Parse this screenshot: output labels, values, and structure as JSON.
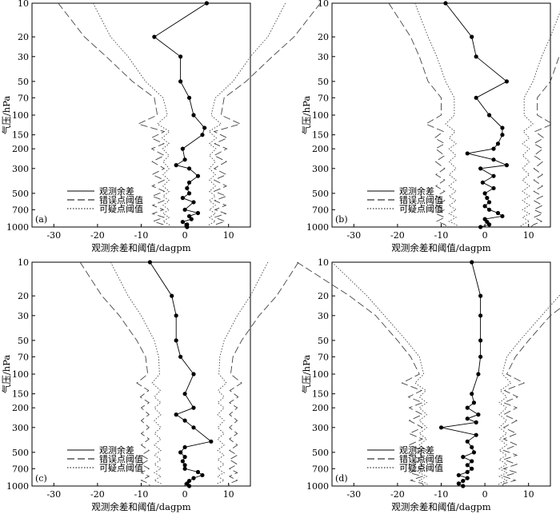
{
  "figure": {
    "xlabel": "观测余差和阈值/dagpm",
    "ylabel": "气压/hPa"
  },
  "legend": {
    "items": [
      {
        "label": "观测余差",
        "style": "solid"
      },
      {
        "label": "错误点阈值",
        "style": "dashed"
      },
      {
        "label": "可疑点阈值",
        "style": "dotted"
      }
    ]
  },
  "chart_data": [
    {
      "type": "line",
      "panel": "(a)",
      "xlabel": "观测余差和阈值/dagpm",
      "ylabel": "气压/hPa",
      "xlim": [
        -35,
        15
      ],
      "ylim": [
        1000,
        10
      ],
      "yscale": "log",
      "xticks": [
        -30,
        -20,
        -10,
        0,
        10
      ],
      "yticks": [
        10,
        20,
        30,
        50,
        70,
        100,
        150,
        200,
        300,
        500,
        700,
        1000
      ],
      "residual_y": [
        10,
        20,
        30,
        50,
        70,
        100,
        130,
        150,
        200,
        250,
        280,
        300,
        350,
        400,
        450,
        500,
        550,
        600,
        700,
        750,
        800,
        850,
        900,
        950,
        1000
      ],
      "residual_x": [
        5,
        -7,
        -1,
        -1,
        1,
        2,
        4.5,
        4,
        -0.5,
        0,
        -2,
        1,
        3,
        1,
        0.5,
        1,
        -0.5,
        2,
        0,
        3,
        1,
        1.5,
        -0.5,
        0.5,
        0.5
      ],
      "threshold_y": [
        10,
        20,
        30,
        50,
        70,
        100,
        120,
        140,
        160,
        180,
        200,
        230,
        260,
        300,
        340,
        380,
        430,
        480,
        530,
        580,
        640,
        700,
        760,
        820,
        890,
        950,
        1000
      ],
      "err_half": [
        30,
        24,
        19,
        13,
        8,
        7.3,
        11.7,
        5.7,
        8.7,
        5.8,
        8.6,
        5.7,
        8.5,
        5.7,
        8.5,
        5.7,
        8.5,
        5.7,
        8.5,
        5.8,
        8.4,
        5.9,
        8.4,
        5.8,
        8.2,
        6.0,
        6.5
      ],
      "susp_half": [
        22,
        18,
        14,
        10,
        6,
        5.0,
        7.3,
        4.5,
        6.2,
        4.6,
        6.1,
        4.6,
        6.0,
        4.6,
        6.0,
        4.6,
        6.0,
        4.6,
        6.0,
        4.6,
        6.0,
        4.6,
        6.0,
        4.6,
        6.0,
        4.6,
        4.5
      ],
      "threshold_center": 1
    },
    {
      "type": "line",
      "panel": "(b)",
      "xlabel": "观测余差和阈值/dagpm",
      "ylabel": "气压/hPa",
      "xlim": [
        -35,
        15
      ],
      "ylim": [
        1000,
        10
      ],
      "yscale": "log",
      "xticks": [
        -30,
        -20,
        -10,
        0,
        10
      ],
      "yticks": [
        10,
        20,
        30,
        50,
        70,
        100,
        150,
        200,
        300,
        500,
        700,
        1000
      ],
      "residual_y": [
        10,
        20,
        30,
        50,
        70,
        100,
        130,
        150,
        180,
        200,
        220,
        250,
        280,
        300,
        350,
        400,
        450,
        500,
        550,
        600,
        650,
        700,
        750,
        800,
        850,
        900,
        950,
        1000
      ],
      "residual_x": [
        -9,
        -3,
        -2,
        5,
        -2,
        1,
        4,
        4,
        3,
        2,
        -4,
        2,
        5,
        -1,
        2,
        -0.5,
        2,
        0,
        0.5,
        1,
        0,
        1,
        3,
        4,
        0,
        0.5,
        1,
        -1
      ],
      "threshold_y": [
        10,
        20,
        30,
        50,
        70,
        100,
        120,
        140,
        160,
        180,
        200,
        230,
        260,
        300,
        340,
        380,
        430,
        480,
        530,
        580,
        640,
        700,
        760,
        820,
        890,
        950,
        1000
      ],
      "err_half": [
        23,
        18,
        16,
        14,
        11,
        11.0,
        14.5,
        10.5,
        12.5,
        10.2,
        12.3,
        10.2,
        12.3,
        10.2,
        12.2,
        10.2,
        12.2,
        10.2,
        12.2,
        10.2,
        12.2,
        10.2,
        12.2,
        10.2,
        12.0,
        10.2,
        9.5
      ],
      "susp_half": [
        17,
        14,
        12,
        10,
        8,
        8.0,
        10.0,
        7.8,
        9.2,
        7.6,
        9.2,
        7.6,
        9.2,
        7.6,
        9.2,
        7.6,
        9.2,
        7.6,
        9.2,
        7.6,
        9.2,
        7.6,
        9.2,
        7.6,
        9.2,
        7.6,
        7.0
      ],
      "threshold_center": 1
    },
    {
      "type": "line",
      "panel": "(c)",
      "xlabel": "观测余差和阈值/dagpm",
      "ylabel": "气压/hPa",
      "xlim": [
        -35,
        15
      ],
      "ylim": [
        1000,
        10
      ],
      "yscale": "log",
      "xticks": [
        -30,
        -20,
        -10,
        0,
        10
      ],
      "yticks": [
        10,
        20,
        30,
        50,
        70,
        100,
        150,
        200,
        300,
        500,
        700,
        1000
      ],
      "residual_y": [
        10,
        20,
        30,
        50,
        70,
        100,
        150,
        200,
        230,
        260,
        300,
        400,
        450,
        500,
        550,
        600,
        650,
        700,
        750,
        800,
        850,
        900,
        950,
        1000
      ],
      "residual_x": [
        -8,
        -3,
        -2,
        -2,
        -1,
        2,
        0,
        2,
        -2,
        0,
        2,
        6,
        0,
        -1,
        0,
        -0.5,
        0,
        0,
        3,
        4,
        2,
        1,
        0.5,
        1
      ],
      "threshold_y": [
        10,
        20,
        30,
        50,
        70,
        100,
        120,
        140,
        160,
        180,
        200,
        230,
        260,
        300,
        340,
        380,
        430,
        480,
        530,
        580,
        640,
        700,
        760,
        820,
        890,
        950,
        1000
      ],
      "err_half": [
        25,
        20,
        16,
        12,
        10,
        9.5,
        12.0,
        9.3,
        11.2,
        9.2,
        11.0,
        9.2,
        11.0,
        9.2,
        11.0,
        9.2,
        11.0,
        9.2,
        11.0,
        9.2,
        11.0,
        9.2,
        11.0,
        9.2,
        11.0,
        9.2,
        9.0
      ],
      "susp_half": [
        18,
        14,
        11,
        8,
        7,
        6.8,
        8.5,
        6.6,
        8.0,
        6.5,
        8.0,
        6.5,
        8.0,
        6.5,
        8.0,
        6.5,
        8.0,
        6.5,
        8.0,
        6.5,
        8.0,
        6.5,
        8.0,
        6.5,
        8.0,
        6.5,
        6.5
      ],
      "threshold_center": 1
    },
    {
      "type": "line",
      "panel": "(d)",
      "xlabel": "观测余差和阈值/dagpm",
      "ylabel": "气压/hPa",
      "xlim": [
        -35,
        15
      ],
      "ylim": [
        1000,
        10
      ],
      "yscale": "log",
      "xticks": [
        -30,
        -20,
        -10,
        0,
        10
      ],
      "yticks": [
        10,
        20,
        30,
        50,
        70,
        100,
        150,
        200,
        300,
        500,
        700,
        1000
      ],
      "residual_y": [
        10,
        20,
        30,
        50,
        70,
        100,
        150,
        180,
        200,
        230,
        250,
        270,
        300,
        350,
        400,
        450,
        500,
        550,
        600,
        650,
        700,
        750,
        800,
        850,
        900,
        950,
        1000
      ],
      "residual_x": [
        -3,
        -1,
        -1,
        -1,
        -1,
        -1.5,
        -3,
        -2.5,
        -4,
        -1.5,
        -4,
        -2,
        -10,
        -2,
        -4,
        -3,
        -2.5,
        -5,
        -3,
        -4,
        -3,
        -4,
        -6,
        -4,
        -5,
        -6,
        -5
      ],
      "threshold_y": [
        10,
        20,
        30,
        50,
        70,
        100,
        120,
        140,
        160,
        180,
        200,
        230,
        260,
        300,
        340,
        380,
        430,
        480,
        530,
        580,
        640,
        700,
        760,
        820,
        890,
        950,
        1000
      ],
      "err_half": [
        38,
        26,
        20,
        15,
        12,
        10.0,
        14.0,
        9.5,
        12.5,
        9.3,
        12.3,
        9.3,
        12.3,
        9.3,
        12.3,
        9.3,
        12.3,
        9.3,
        12.3,
        9.3,
        12.3,
        9.3,
        12.3,
        9.3,
        12.0,
        9.3,
        9.0
      ],
      "susp_half": [
        30,
        22,
        18,
        13,
        10,
        9.0,
        11.0,
        8.5,
        10.0,
        8.3,
        10.0,
        8.3,
        10.0,
        8.3,
        10.0,
        8.3,
        10.0,
        8.3,
        10.0,
        8.3,
        10.0,
        8.3,
        10.0,
        8.3,
        10.0,
        8.3,
        8.0
      ],
      "threshold_center": -5
    }
  ]
}
